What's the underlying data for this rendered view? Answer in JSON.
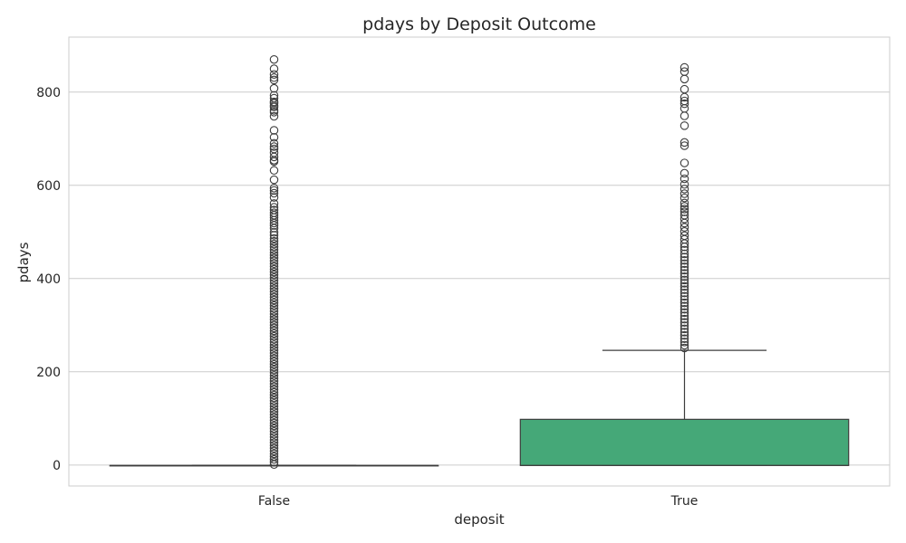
{
  "chart_data": {
    "type": "box",
    "title": "pdays by Deposit Outcome",
    "xlabel": "deposit",
    "ylabel": "pdays",
    "ylim": [
      -45,
      918
    ],
    "yticks": [
      0,
      200,
      400,
      600,
      800
    ],
    "grid": true,
    "box_color": "#45a878",
    "edge_color": "#3d3d3d",
    "categories": [
      "False",
      "True"
    ],
    "boxes": [
      {
        "label": "False",
        "q1": -1,
        "median": -1,
        "q3": -1,
        "whisker_low": -1,
        "whisker_high": -1,
        "outliers": [
          870,
          850,
          838,
          831,
          826,
          808,
          793,
          787,
          779,
          776,
          771,
          768,
          761,
          757,
          748,
          718,
          703,
          690,
          683,
          678,
          670,
          661,
          654,
          651,
          632,
          612,
          594,
          589,
          583,
          574,
          561,
          553,
          547,
          541,
          536,
          531,
          525,
          519,
          514,
          508,
          499,
          493,
          486,
          480,
          474,
          468,
          462,
          456,
          450,
          444,
          438,
          432,
          426,
          420,
          414,
          408,
          402,
          396,
          390,
          384,
          378,
          372,
          366,
          360,
          354,
          348,
          342,
          336,
          330,
          324,
          318,
          312,
          306,
          300,
          294,
          288,
          282,
          276,
          270,
          264,
          258,
          252,
          246,
          240,
          234,
          228,
          222,
          216,
          210,
          204,
          198,
          192,
          186,
          180,
          174,
          168,
          162,
          156,
          150,
          144,
          138,
          132,
          126,
          120,
          114,
          108,
          102,
          96,
          90,
          84,
          78,
          72,
          66,
          60,
          54,
          48,
          42,
          36,
          30,
          24,
          18,
          12,
          6,
          1
        ]
      },
      {
        "label": "True",
        "q1": -1,
        "median": -1,
        "q3": 98,
        "whisker_low": -1,
        "whisker_high": 246,
        "outliers": [
          853,
          844,
          828,
          806,
          789,
          781,
          775,
          765,
          749,
          728,
          692,
          685,
          648,
          626,
          614,
          602,
          592,
          582,
          573,
          562,
          555,
          549,
          543,
          536,
          528,
          519,
          510,
          501,
          492,
          484,
          475,
          468,
          461,
          453,
          446,
          439,
          432,
          425,
          418,
          411,
          404,
          397,
          390,
          383,
          376,
          369,
          362,
          355,
          348,
          341,
          334,
          327,
          320,
          313,
          306,
          299,
          292,
          285,
          278,
          271,
          264,
          257,
          251
        ]
      }
    ]
  }
}
